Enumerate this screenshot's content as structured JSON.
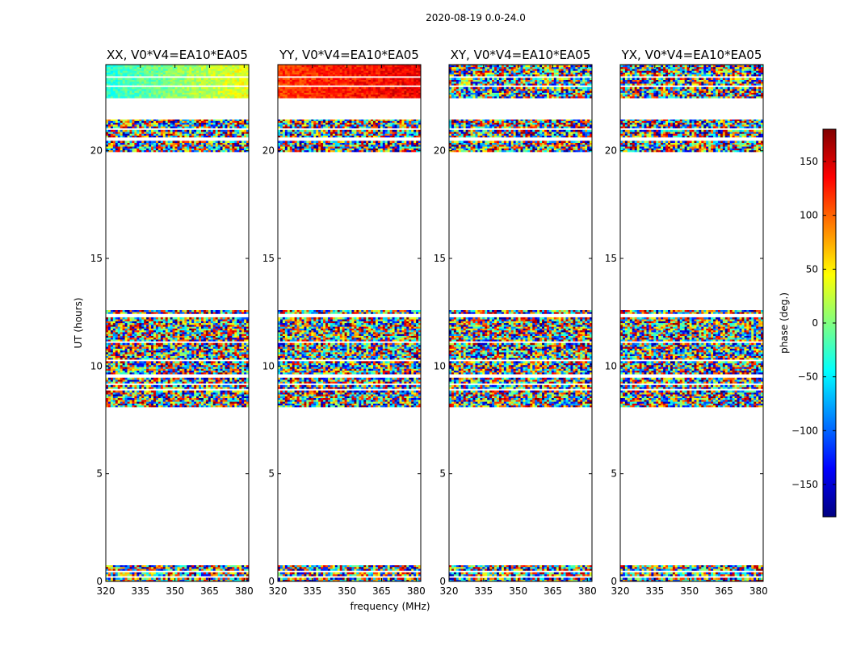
{
  "figure": {
    "suptitle": "2020-08-19 0.0-24.0",
    "xlabel": "frequency (MHz)",
    "ylabel": "UT (hours)",
    "colorbar_label": "phase (deg.)"
  },
  "chart_data": {
    "type": "heatmap",
    "xlim": [
      320,
      382
    ],
    "ylim": [
      0,
      24
    ],
    "x_ticks": [
      320,
      335,
      350,
      365,
      380
    ],
    "y_ticks": [
      0,
      5,
      10,
      15,
      20
    ],
    "colorbar": {
      "min": -180,
      "max": 180,
      "ticks": [
        -150,
        -100,
        -50,
        0,
        50,
        100,
        150
      ],
      "colormap": "jet"
    },
    "data_time_ranges": [
      [
        0.0,
        0.75
      ],
      [
        8.1,
        12.6
      ],
      [
        19.95,
        21.45
      ],
      [
        22.45,
        24.0
      ]
    ],
    "blank_rows": [
      0.18,
      0.42,
      8.85,
      9.15,
      9.5,
      10.2,
      11.1,
      12.3,
      20.5,
      21.0,
      22.95,
      23.4
    ],
    "panels": [
      {
        "title": "XX, V0*V4=EA10*EA05",
        "pol": "XX",
        "calibrated_mean_deg": [
          -30,
          40
        ]
      },
      {
        "title": "YY, V0*V4=EA10*EA05",
        "pol": "YY",
        "calibrated_mean_deg": [
          115,
          140
        ]
      },
      {
        "title": "XY, V0*V4=EA10*EA05",
        "pol": "XY",
        "calibrated_mean_deg": null
      },
      {
        "title": "YX, V0*V4=EA10*EA05",
        "pol": "YX",
        "calibrated_mean_deg": null
      }
    ]
  }
}
